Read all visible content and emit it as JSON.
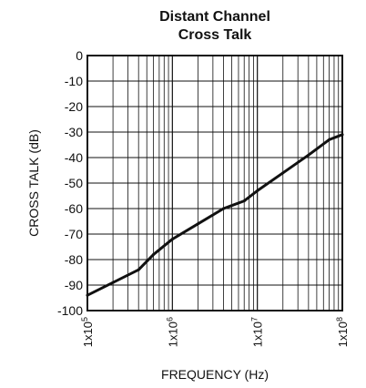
{
  "chart_data": {
    "type": "line",
    "title": [
      "Distant Channel",
      "Cross Talk"
    ],
    "xlabel": "FREQUENCY (Hz)",
    "ylabel": "CROSS TALK (dB)",
    "xscale": "log",
    "xlim": [
      100000,
      100000000
    ],
    "ylim": [
      -100,
      0
    ],
    "grid": true,
    "y_ticks": [
      "0",
      "-10",
      "-20",
      "-30",
      "-40",
      "-50",
      "-60",
      "-70",
      "-80",
      "-90",
      "-100"
    ],
    "x_ticks": [
      {
        "base": "1x10",
        "exp": "5"
      },
      {
        "base": "1x10",
        "exp": "6"
      },
      {
        "base": "1x10",
        "exp": "7"
      },
      {
        "base": "1x10",
        "exp": "8"
      }
    ],
    "series": [
      {
        "color": "#111111",
        "x": [
          100000,
          200000,
          400000,
          600000,
          1000000,
          2000000,
          4000000,
          7000000,
          10000000,
          20000000,
          40000000,
          70000000,
          100000000
        ],
        "y": [
          -94,
          -89,
          -84,
          -78,
          -72,
          -66,
          -60,
          -57,
          -53,
          -46,
          -39,
          -33,
          -31
        ]
      }
    ]
  }
}
